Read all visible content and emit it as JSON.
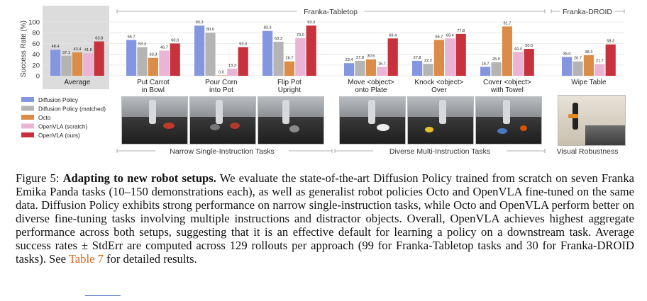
{
  "chart_data": {
    "type": "bar",
    "ylabel": "Success Rate (%)",
    "ylim": [
      0,
      100
    ],
    "yticks": [
      0,
      20,
      40,
      60,
      80,
      100
    ],
    "grid": true,
    "legend_position": "bottom-left",
    "series": [
      {
        "name": "Diffusion Policy",
        "color": "#8496e0"
      },
      {
        "name": "Diffusion Policy (matched)",
        "color": "#b4b4b4"
      },
      {
        "name": "Octo",
        "color": "#dc8c46"
      },
      {
        "name": "OpenVLA (scratch)",
        "color": "#eab4d4"
      },
      {
        "name": "OpenVLA (ours)",
        "color": "#c8323c"
      }
    ],
    "categories": [
      {
        "label": [
          "Average"
        ],
        "values": [
          48.4,
          37.1,
          43.4,
          41.8,
          63.8
        ],
        "labels": [
          "48.4",
          "37.1",
          "43.4",
          "41.8",
          "63.8"
        ]
      },
      {
        "label": [
          "Put Carrot",
          "in Bowl"
        ],
        "values": [
          66.7,
          53.3,
          33.3,
          46.7,
          60.0
        ],
        "labels": [
          "66.7",
          "53.3",
          "33.3",
          "46.7",
          "60.0"
        ]
      },
      {
        "label": [
          "Pour Corn",
          "into Pot"
        ],
        "values": [
          93.3,
          80.0,
          0.0,
          13.3,
          53.3
        ],
        "labels": [
          "93.3",
          "80.0",
          "0.0",
          "13.3",
          "53.3"
        ]
      },
      {
        "label": [
          "Flip Pot",
          "Upright"
        ],
        "values": [
          83.3,
          63.3,
          26.7,
          70.0,
          93.3
        ],
        "labels": [
          "83.3",
          "63.3",
          "26.7",
          "70.0",
          "93.3"
        ]
      },
      {
        "label": [
          "Move <object>",
          "onto Plate"
        ],
        "values": [
          23.4,
          27.8,
          30.6,
          16.7,
          69.4
        ],
        "labels": [
          "23.4",
          "27.8",
          "30.6",
          "16.7",
          "69.4"
        ]
      },
      {
        "label": [
          "Knock <object>",
          "Over"
        ],
        "values": [
          27.8,
          22.2,
          66.7,
          69.4,
          77.8
        ],
        "labels": [
          "27.8",
          "22.2",
          "66.7",
          "69.4",
          "77.8"
        ]
      },
      {
        "label": [
          "Cover <object>",
          "with Towel"
        ],
        "values": [
          16.7,
          25.0,
          91.7,
          44.4,
          50.0
        ],
        "labels": [
          "16.7",
          "25.0",
          "91.7",
          "44.4",
          "50.0"
        ]
      },
      {
        "label": [
          "Wipe Table"
        ],
        "values": [
          35.0,
          26.7,
          38.3,
          21.7,
          58.3
        ],
        "labels": [
          "35.0",
          "26.7",
          "38.3",
          "21.7",
          "58.3"
        ]
      }
    ],
    "top_groups": [
      "Franka-Tabletop",
      "Franka-DROID"
    ],
    "bottom_groups": [
      "Narrow Single-Instruction Tasks",
      "Diverse Multi-Instruction Tasks",
      "Visual Robustness"
    ]
  },
  "caption": {
    "label": "Figure 5: ",
    "bold": "Adapting to new robot setups.",
    "body": " We evaluate the state-of-the-art Diffusion Policy trained from scratch on seven Franka Emika Panda tasks (10–150 demonstrations each), as well as generalist robot policies Octo and OpenVLA fine-tuned on the same data. Diffusion Policy exhibits strong performance on narrow single-instruction tasks, while Octo and OpenVLA perform better on diverse fine-tuning tasks involving multiple instructions and distractor objects. Overall, OpenVLA achieves highest aggregate performance across both setups, suggesting that it is an effective default for learning a policy on a downstream task. Average success rates ± StdErr are computed across 129 rollouts per approach (99 for Franka-Tabletop tasks and 30 for Franka-DROID tasks). See ",
    "link": "Table 7",
    "tail": " for detailed results."
  },
  "colors": {
    "average_panel_bg": "#dcdcdc",
    "gridline": "#e4e4e4",
    "group_line": "#999999"
  }
}
